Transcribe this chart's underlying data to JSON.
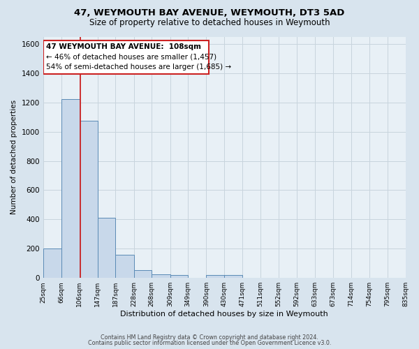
{
  "title1": "47, WEYMOUTH BAY AVENUE, WEYMOUTH, DT3 5AD",
  "title2": "Size of property relative to detached houses in Weymouth",
  "xlabel": "Distribution of detached houses by size in Weymouth",
  "ylabel": "Number of detached properties",
  "footer1": "Contains HM Land Registry data © Crown copyright and database right 2024.",
  "footer2": "Contains public sector information licensed under the Open Government Licence v3.0.",
  "bin_edges": [
    25,
    66,
    106,
    147,
    187,
    228,
    268,
    309,
    349,
    390,
    430,
    471,
    511,
    552,
    592,
    633,
    673,
    714,
    754,
    795,
    835
  ],
  "bar_heights": [
    200,
    1225,
    1075,
    410,
    160,
    55,
    25,
    20,
    0,
    20,
    20,
    0,
    0,
    0,
    0,
    0,
    0,
    0,
    0,
    0
  ],
  "bar_color": "#c8d8ea",
  "bar_edge_color": "#5a8ab5",
  "property_size": 108,
  "vline_color": "#cc2222",
  "annotation_line1": "47 WEYMOUTH BAY AVENUE:  108sqm",
  "annotation_line2": "← 46% of detached houses are smaller (1,457)",
  "annotation_line3": "54% of semi-detached houses are larger (1,685) →",
  "annotation_box_edgecolor": "#cc2222",
  "ylim": [
    0,
    1650
  ],
  "yticks": [
    0,
    200,
    400,
    600,
    800,
    1000,
    1200,
    1400,
    1600
  ],
  "bg_color": "#d8e4ee",
  "plot_bg_color": "#e8f0f6",
  "grid_color": "#c8d4dd",
  "title1_fontsize": 9.5,
  "title2_fontsize": 8.5,
  "ylabel_fontsize": 7.5,
  "xlabel_fontsize": 8,
  "footer_fontsize": 5.8,
  "ytick_fontsize": 7.5,
  "xtick_fontsize": 6.5
}
